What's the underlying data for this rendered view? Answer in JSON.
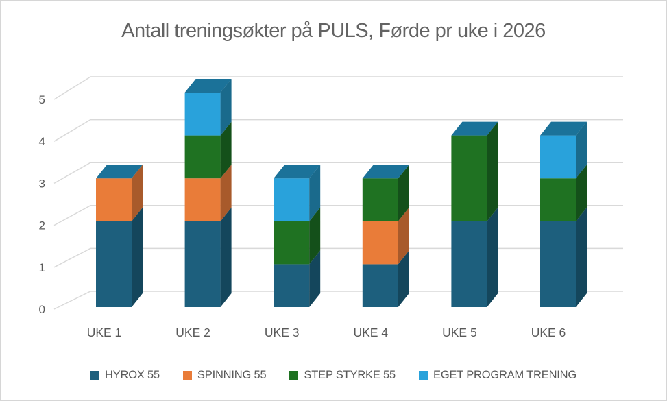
{
  "window": {
    "background": "#ffffff",
    "border_color": "#d6d6d6"
  },
  "chart_data": {
    "type": "bar",
    "subtype": "3d-stacked-column",
    "title": "Antall treningsøkter på PULS, Førde pr uke i 2026",
    "categories": [
      "UKE 1",
      "UKE 2",
      "UKE 3",
      "UKE 4",
      "UKE 5",
      "UKE 6"
    ],
    "series": [
      {
        "name": "HYROX 55",
        "values": [
          2,
          2,
          1,
          1,
          2,
          2
        ],
        "color": "#1D5F7D",
        "color_side": "#14465C"
      },
      {
        "name": "SPINNING 55",
        "values": [
          1,
          1,
          0,
          1,
          0,
          0
        ],
        "color": "#E97C39",
        "color_side": "#A85A2B"
      },
      {
        "name": "STEP STYRKE 55",
        "values": [
          0,
          1,
          1,
          1,
          2,
          1
        ],
        "color": "#1F7222",
        "color_side": "#14501A"
      },
      {
        "name": "EGET PROGRAM TRENING",
        "values": [
          0,
          1,
          1,
          0,
          0,
          1
        ],
        "color": "#29A2DB",
        "color_side": "#1A6A8C"
      }
    ],
    "category_totals": [
      3,
      5,
      3,
      3,
      4,
      4
    ],
    "bar_top_color": "#1B7299",
    "y_axis": {
      "min": 0,
      "max": 5,
      "ticks": [
        0,
        1,
        2,
        3,
        4,
        5
      ]
    },
    "grid": true,
    "grid_color": "#D9D9D9",
    "text_color": "#595959",
    "legend_position": "bottom"
  }
}
